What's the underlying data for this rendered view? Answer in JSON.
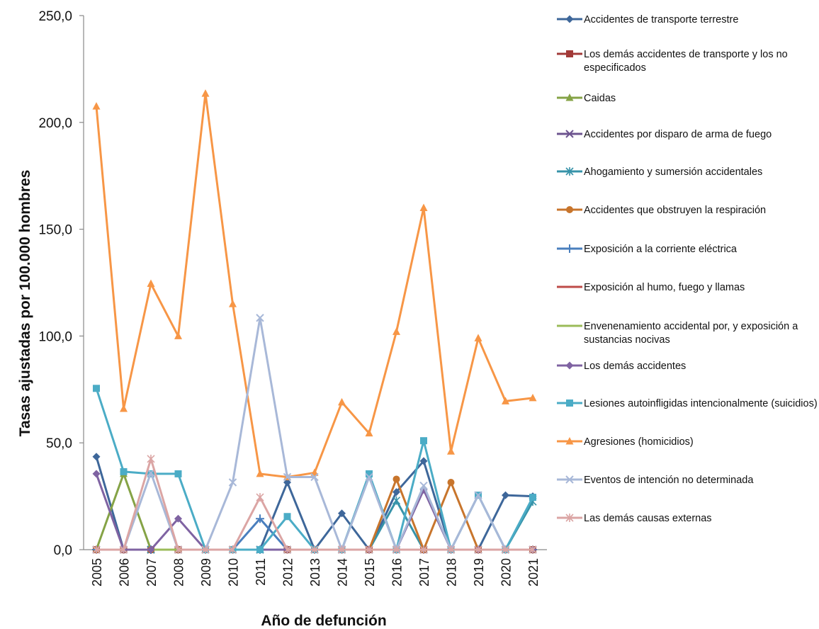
{
  "chart_data": {
    "type": "line",
    "xlabel": "Año de defunción",
    "ylabel": "Tasas ajustadas por 100.000 hombres",
    "ylim": [
      0,
      250
    ],
    "yticks": [
      "0,0",
      "50,0",
      "100,0",
      "150,0",
      "200,0",
      "250,0"
    ],
    "ytick_values": [
      0,
      50,
      100,
      150,
      200,
      250
    ],
    "grid": false,
    "legend_position": "right",
    "x": [
      "2005",
      "2006",
      "2007",
      "2008",
      "2009",
      "2010",
      "2011",
      "2012",
      "2013",
      "2014",
      "2015",
      "2016",
      "2017",
      "2018",
      "2019",
      "2020",
      "2021"
    ],
    "series": [
      {
        "name": "Accidentes de transporte terrestre",
        "color": "#3e679a",
        "marker": "diamond",
        "values": [
          43.5,
          0,
          0,
          0,
          0,
          0,
          0,
          31.5,
          0,
          17,
          0,
          27,
          41.5,
          0,
          0,
          25.5,
          25
        ]
      },
      {
        "name": "Los demás accidentes de transporte y los no especificados",
        "color": "#a23a38",
        "marker": "square",
        "values": [
          0,
          0,
          0,
          0,
          0,
          0,
          0,
          0,
          0,
          0,
          0,
          0,
          0,
          0,
          0,
          0,
          0
        ]
      },
      {
        "name": "Caidas",
        "color": "#85a346",
        "marker": "triangle",
        "values": [
          0,
          35.5,
          0,
          0,
          0,
          0,
          0,
          0,
          0,
          0,
          0,
          0,
          0,
          0,
          0,
          0,
          0
        ]
      },
      {
        "name": "Accidentes por disparo de arma de fuego",
        "color": "#6d548f",
        "marker": "x",
        "values": [
          0,
          0,
          0,
          0,
          0,
          0,
          0,
          0,
          0,
          0,
          0,
          0,
          0,
          0,
          0,
          0,
          0
        ]
      },
      {
        "name": "Ahogamiento y sumersión accidentales",
        "color": "#3793a9",
        "marker": "star",
        "values": [
          0,
          0,
          0,
          0,
          0,
          0,
          0,
          0,
          0,
          0,
          0,
          23,
          0,
          0,
          0,
          0,
          22.5
        ]
      },
      {
        "name": "Accidentes que obstruyen la respiración",
        "color": "#c8752c",
        "marker": "circle",
        "values": [
          0,
          0,
          0,
          0,
          0,
          0,
          0,
          0,
          0,
          0,
          0,
          33,
          0,
          31.5,
          0,
          0,
          0
        ]
      },
      {
        "name": "Exposición a la corriente eléctrica",
        "color": "#4a7fbe",
        "marker": "plus",
        "values": [
          0,
          0,
          0,
          0,
          0,
          0,
          14.5,
          0,
          0,
          0,
          0,
          0,
          0,
          0,
          0,
          0,
          0
        ]
      },
      {
        "name": "Exposición al humo, fuego y llamas",
        "color": "#be4b48",
        "marker": "none",
        "values": [
          0,
          0,
          0,
          0,
          0,
          0,
          0,
          0,
          0,
          0,
          0,
          0,
          0,
          0,
          0,
          0,
          0
        ]
      },
      {
        "name": "Envenenamiento accidental por, y exposición a sustancias nocivas",
        "color": "#9bbb59",
        "marker": "none",
        "values": [
          0,
          0,
          0,
          0,
          0,
          0,
          0,
          0,
          0,
          0,
          0,
          0,
          0,
          0,
          0,
          0,
          0
        ]
      },
      {
        "name": "Los demás accidentes",
        "color": "#7f63a2",
        "marker": "diamond",
        "values": [
          35.5,
          0,
          0,
          14.5,
          0,
          0,
          0,
          0,
          0,
          0,
          0,
          0,
          28,
          0,
          0,
          0,
          0
        ]
      },
      {
        "name": "Lesiones autoinfligidas intencionalmente (suicidios)",
        "color": "#4bacc6",
        "marker": "square",
        "values": [
          75.5,
          36.5,
          35.5,
          35.5,
          0,
          0,
          0,
          15.5,
          0,
          0,
          35.5,
          0,
          51,
          0,
          25.5,
          0,
          24.5
        ]
      },
      {
        "name": "Agresiones (homicidios)",
        "color": "#f79646",
        "marker": "triangle",
        "values": [
          207.5,
          66,
          124.5,
          100,
          213.5,
          115,
          35.5,
          34,
          36,
          69,
          54.5,
          102,
          160,
          46,
          99,
          69.5,
          71
        ]
      },
      {
        "name": "Eventos de intención no determinada",
        "color": "#a8b8d8",
        "marker": "x",
        "values": [
          0,
          0,
          36,
          0,
          0,
          31.5,
          108.5,
          34,
          34,
          0,
          34,
          0,
          30,
          0,
          25.5,
          0,
          0
        ]
      },
      {
        "name": "Las demás causas externas",
        "color": "#dba5a4",
        "marker": "star",
        "values": [
          0,
          0,
          42.5,
          0,
          0,
          0,
          24.5,
          0,
          0,
          0,
          0,
          0,
          0,
          0,
          0,
          0,
          0
        ]
      }
    ]
  }
}
